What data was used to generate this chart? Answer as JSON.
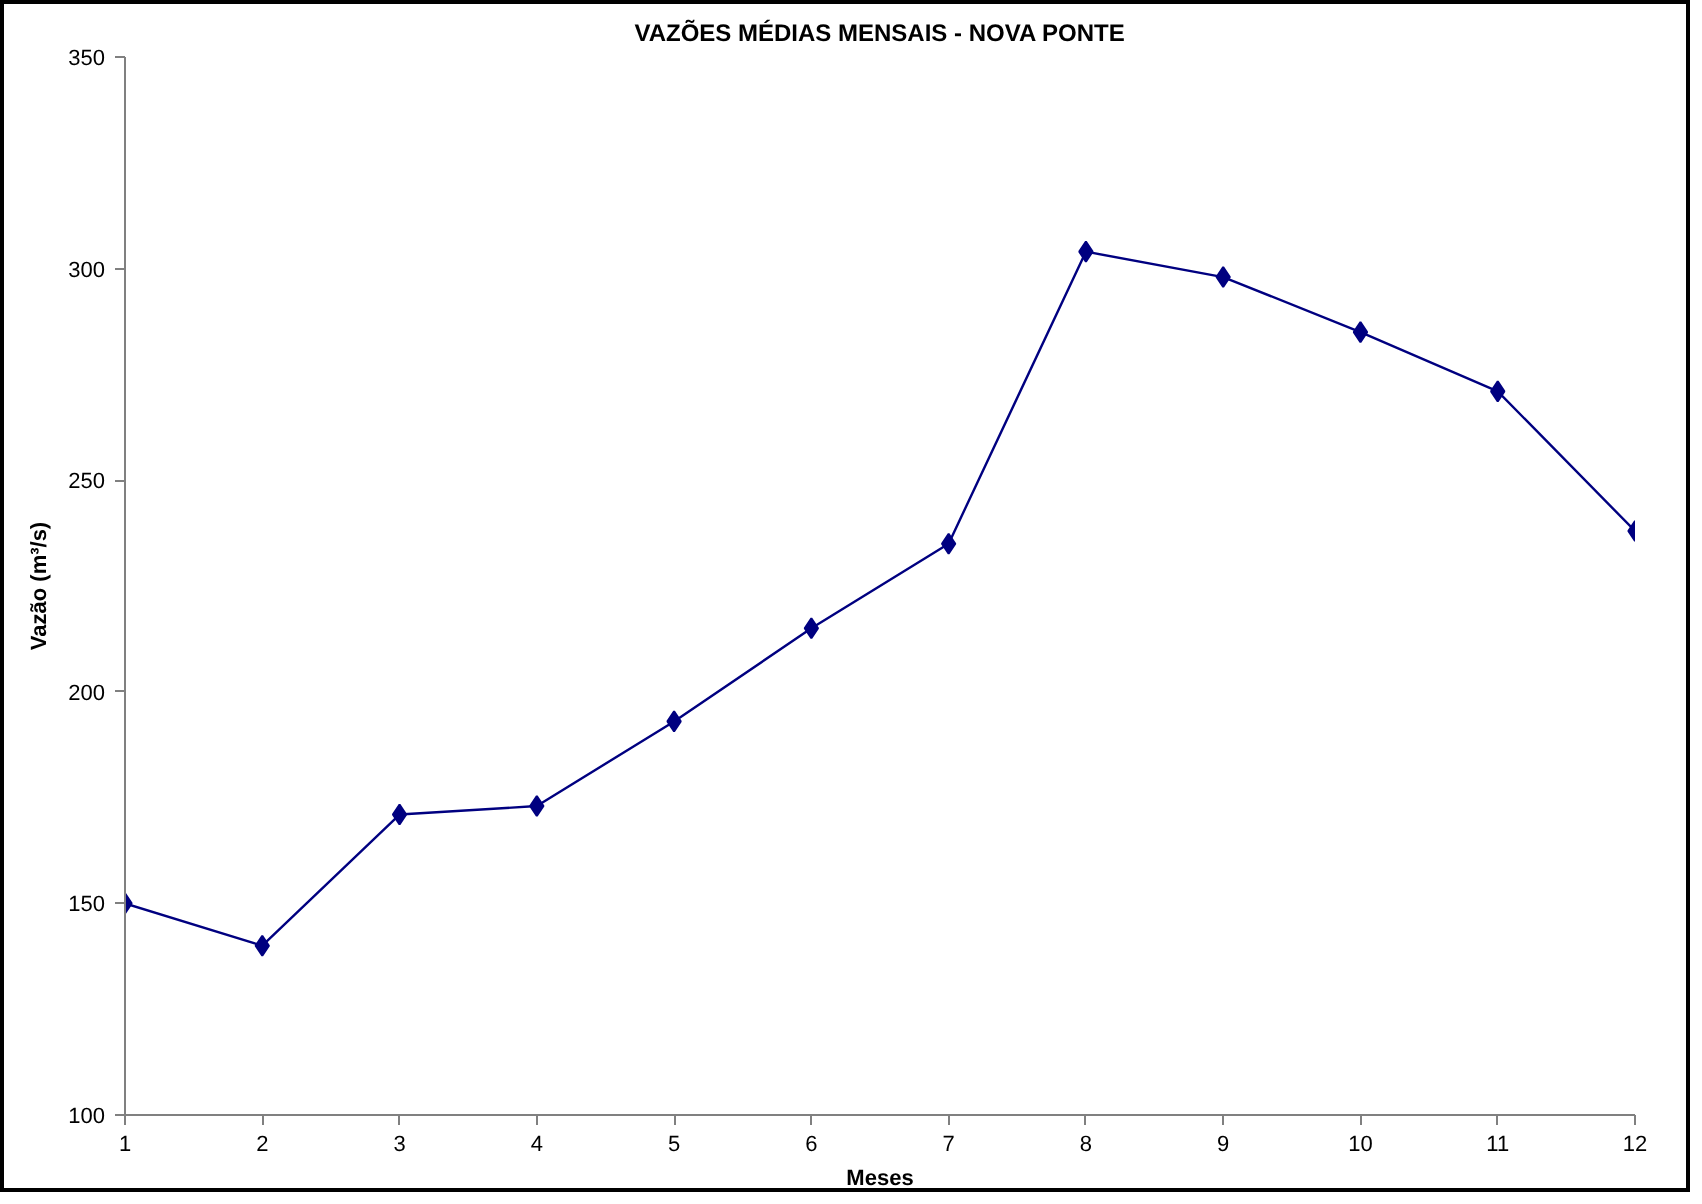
{
  "chart_data": {
    "type": "line",
    "title": "VAZÕES MÉDIAS MENSAIS - NOVA PONTE",
    "xlabel": "Meses",
    "ylabel": "Vazão (m³/s)",
    "x": [
      1,
      2,
      3,
      4,
      5,
      6,
      7,
      8,
      9,
      10,
      11,
      12
    ],
    "series": [
      {
        "color": "#000080",
        "values": [
          150,
          140,
          171,
          173,
          193,
          215,
          235,
          304,
          298,
          285,
          271,
          238
        ]
      }
    ],
    "xlim": [
      1,
      12
    ],
    "xticks": [
      1,
      2,
      3,
      4,
      5,
      6,
      7,
      8,
      9,
      10,
      11,
      12
    ],
    "ylim": [
      100,
      350
    ],
    "yticks": [
      100,
      150,
      200,
      250,
      300,
      350
    ],
    "grid": false,
    "marker": "diamond",
    "line_style": "solid"
  }
}
